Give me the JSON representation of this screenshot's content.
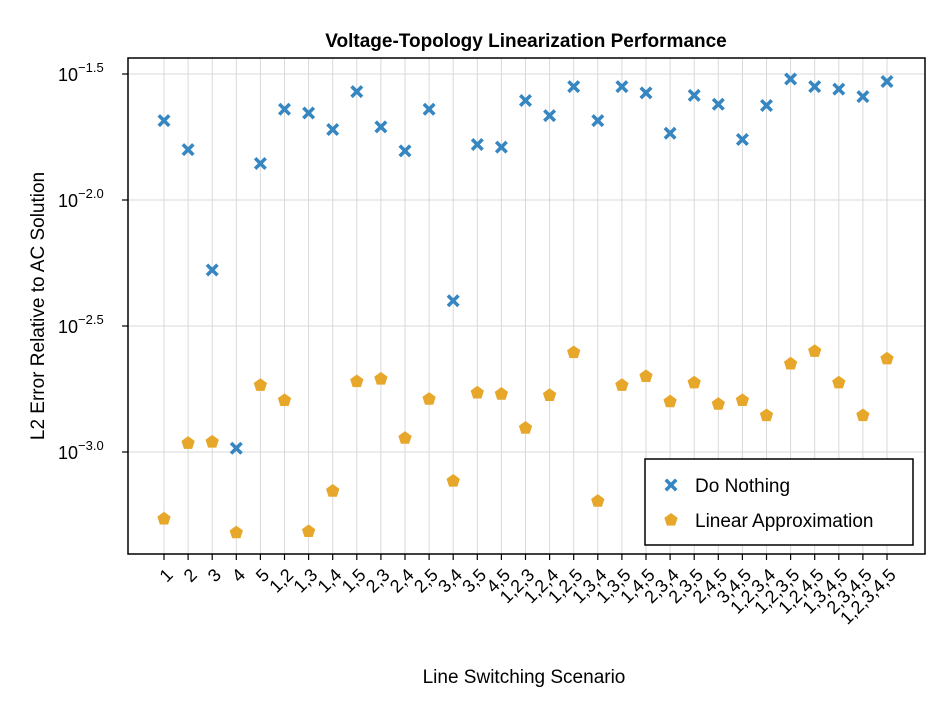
{
  "chart_data": {
    "type": "scatter",
    "title": "Voltage-Topology Linearization Performance",
    "xlabel": "Line Switching Scenario",
    "ylabel": "L2 Error Relative to AC Solution",
    "yscale": "log10",
    "ylim_log10": [
      -3.42,
      -1.5
    ],
    "ytick_labels": [
      {
        "base": "10",
        "exp": "−1.5",
        "value": -1.5
      },
      {
        "base": "10",
        "exp": "−2.0",
        "value": -2.0
      },
      {
        "base": "10",
        "exp": "−2.5",
        "value": -2.5
      },
      {
        "base": "10",
        "exp": "−3.0",
        "value": -3.0
      }
    ],
    "categories": [
      "1",
      "2",
      "3",
      "4",
      "5",
      "1,2",
      "1,3",
      "1,4",
      "1,5",
      "2,3",
      "2,4",
      "2,5",
      "3,4",
      "3,5",
      "4,5",
      "1,2,3",
      "1,2,4",
      "1,2,5",
      "1,3,4",
      "1,3,5",
      "1,4,5",
      "2,3,4",
      "2,3,5",
      "2,4,5",
      "3,4,5",
      "1,2,3,4",
      "1,2,3,5",
      "1,2,4,5",
      "1,3,4,5",
      "2,3,4,5",
      "1,2,3,4,5"
    ],
    "legend_position": "bottom-right",
    "series": [
      {
        "name": "Do Nothing",
        "color": "#3586c1",
        "marker": "x",
        "log10_values": [
          -1.685,
          -1.8,
          -2.278,
          -2.985,
          -1.855,
          -1.64,
          -1.655,
          -1.72,
          -1.57,
          -1.71,
          -1.805,
          -1.64,
          -2.4,
          -1.78,
          -1.79,
          -1.605,
          -1.665,
          -1.55,
          -1.685,
          -1.55,
          -1.575,
          -1.735,
          -1.585,
          -1.62,
          -1.76,
          -1.625,
          -1.52,
          -1.55,
          -1.56,
          -1.59,
          -1.53
        ]
      },
      {
        "name": "Linear Approximation",
        "color": "#e6a72b",
        "marker": "pentagon",
        "log10_values": [
          -3.265,
          -2.965,
          -2.96,
          -3.32,
          -2.735,
          -2.795,
          -3.315,
          -3.155,
          -2.72,
          -2.71,
          -2.945,
          -2.79,
          -3.115,
          -2.765,
          -2.77,
          -2.905,
          -2.775,
          -2.605,
          -3.195,
          -2.735,
          -2.7,
          -2.8,
          -2.725,
          -2.81,
          -2.795,
          -2.855,
          -2.65,
          -2.6,
          -2.725,
          -2.855,
          -2.63
        ]
      }
    ]
  }
}
